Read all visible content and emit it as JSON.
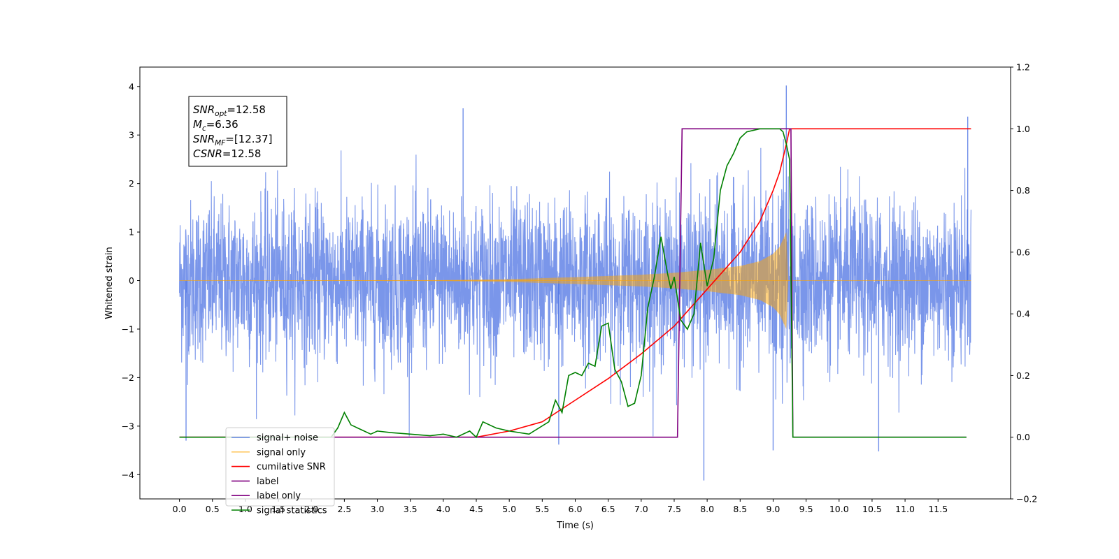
{
  "chart_data": {
    "type": "line",
    "title": "",
    "xlabel": "Time (s)",
    "ylabel": "Whitened strain",
    "xlim": [
      -0.6,
      12.6
    ],
    "ylim": [
      -4.5,
      4.4
    ],
    "y2lim": [
      -0.2,
      1.2
    ],
    "x_ticks": [
      0.0,
      0.5,
      1.0,
      1.5,
      2.0,
      2.5,
      3.0,
      3.5,
      4.0,
      4.5,
      5.0,
      5.5,
      6.0,
      6.5,
      7.0,
      7.5,
      8.0,
      8.5,
      9.0,
      9.5,
      10.0,
      10.5,
      11.0,
      11.5
    ],
    "x_tick_labels": [
      "0.0",
      "0.5",
      "1.0",
      "1.5",
      "2.0",
      "2.5",
      "3.0",
      "3.5",
      "4.0",
      "4.5",
      "5.0",
      "5.5",
      "6.0",
      "6.5",
      "7.0",
      "7.5",
      "8.0",
      "8.5",
      "9.0",
      "9.5",
      "10.0",
      "10.5",
      "11.0",
      "11.5"
    ],
    "y_ticks": [
      -4,
      -3,
      -2,
      -1,
      0,
      1,
      2,
      3,
      4
    ],
    "y_tick_labels": [
      "−4",
      "−3",
      "−2",
      "−1",
      "0",
      "1",
      "2",
      "3",
      "4"
    ],
    "y2_ticks": [
      -0.2,
      0.0,
      0.2,
      0.4,
      0.6,
      0.8,
      1.0,
      1.2
    ],
    "y2_tick_labels": [
      "−0.2",
      "0.0",
      "0.2",
      "0.4",
      "0.6",
      "0.8",
      "1.0",
      "1.2"
    ],
    "grid": false,
    "legend_placement": "lower-left",
    "annotation": {
      "lines": [
        {
          "base": "SNR",
          "sub": "opt",
          "value": "=12.58"
        },
        {
          "base": "M",
          "sub": "c",
          "value": "=6.36"
        },
        {
          "base": "SNR",
          "sub": "MF",
          "value": "=[12.37]"
        },
        {
          "base": "CSNR",
          "sub": "",
          "value": "=12.58"
        }
      ]
    },
    "series": [
      {
        "name": "signal+ noise",
        "axis": "left",
        "color": "#4169e1",
        "kind": "noise",
        "x_range": [
          0.0,
          12.0
        ],
        "std": 1.0,
        "peaks": [
          [
            9.2,
            4.02
          ],
          [
            7.95,
            -4.12
          ],
          [
            0.1,
            -3.3
          ],
          [
            5.75,
            -3.38
          ],
          [
            10.6,
            -3.52
          ],
          [
            9.0,
            -3.5
          ],
          [
            11.95,
            3.38
          ],
          [
            4.3,
            3.55
          ]
        ]
      },
      {
        "name": "signal only",
        "axis": "left",
        "color": "#ffa500",
        "kind": "chirp",
        "envelope": [
          [
            0.0,
            0.0
          ],
          [
            4.0,
            0.01
          ],
          [
            5.0,
            0.03
          ],
          [
            6.0,
            0.07
          ],
          [
            7.0,
            0.12
          ],
          [
            7.5,
            0.16
          ],
          [
            8.0,
            0.22
          ],
          [
            8.5,
            0.3
          ],
          [
            8.8,
            0.4
          ],
          [
            9.0,
            0.55
          ],
          [
            9.1,
            0.7
          ],
          [
            9.2,
            1.0
          ],
          [
            9.23,
            0.0
          ],
          [
            12.0,
            0.0
          ]
        ]
      },
      {
        "name": "cumilative SNR",
        "axis": "right",
        "color": "#ff0000",
        "kind": "line",
        "x": [
          0.0,
          4.5,
          5.0,
          5.5,
          6.0,
          6.5,
          7.0,
          7.5,
          8.0,
          8.5,
          8.8,
          9.0,
          9.1,
          9.2,
          9.25,
          12.0
        ],
        "y": [
          0.0,
          0.0,
          0.02,
          0.05,
          0.12,
          0.19,
          0.27,
          0.36,
          0.48,
          0.6,
          0.7,
          0.8,
          0.86,
          0.95,
          1.0,
          1.0
        ]
      },
      {
        "name": "label",
        "axis": "right",
        "color": "#800080",
        "kind": "line",
        "x": [
          0.0,
          7.55,
          7.62,
          9.27,
          9.3,
          11.93
        ],
        "y": [
          0.0,
          0.0,
          1.0,
          1.0,
          0.0,
          0.0
        ]
      },
      {
        "name": "label only",
        "axis": "right",
        "color": "#cccccc",
        "kind": "hidden",
        "x": [],
        "y": []
      },
      {
        "name": "signal statistics",
        "axis": "right",
        "color": "#008000",
        "kind": "line",
        "x": [
          0.0,
          2.3,
          2.4,
          2.5,
          2.6,
          2.7,
          2.8,
          2.9,
          3.0,
          3.2,
          3.5,
          3.8,
          4.0,
          4.2,
          4.4,
          4.5,
          4.6,
          4.8,
          5.0,
          5.3,
          5.6,
          5.7,
          5.8,
          5.9,
          6.0,
          6.1,
          6.2,
          6.3,
          6.4,
          6.5,
          6.6,
          6.7,
          6.8,
          6.9,
          7.0,
          7.1,
          7.15,
          7.2,
          7.3,
          7.4,
          7.45,
          7.5,
          7.6,
          7.7,
          7.8,
          7.9,
          8.0,
          8.1,
          8.2,
          8.3,
          8.4,
          8.5,
          8.6,
          8.8,
          9.0,
          9.1,
          9.15,
          9.2,
          9.25,
          9.3,
          11.93
        ],
        "y": [
          0.0,
          0.0,
          0.03,
          0.08,
          0.04,
          0.03,
          0.02,
          0.01,
          0.02,
          0.015,
          0.01,
          0.005,
          0.01,
          0.0,
          0.02,
          0.0,
          0.05,
          0.03,
          0.02,
          0.01,
          0.05,
          0.12,
          0.08,
          0.2,
          0.21,
          0.2,
          0.24,
          0.23,
          0.36,
          0.37,
          0.22,
          0.18,
          0.1,
          0.11,
          0.2,
          0.42,
          0.47,
          0.52,
          0.65,
          0.53,
          0.48,
          0.52,
          0.38,
          0.35,
          0.4,
          0.63,
          0.49,
          0.58,
          0.8,
          0.88,
          0.92,
          0.97,
          0.99,
          1.0,
          1.0,
          1.0,
          0.99,
          0.95,
          0.9,
          0.0,
          0.0
        ]
      }
    ]
  }
}
